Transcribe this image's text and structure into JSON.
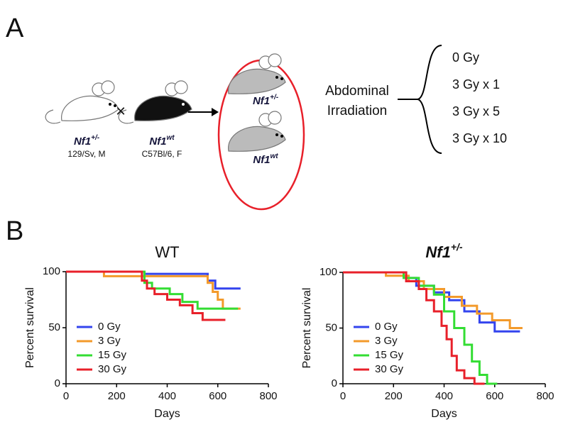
{
  "panel_a": {
    "label": "A",
    "cross": "×",
    "parents": [
      {
        "gene": "Nf1",
        "genotype": "+/-",
        "strain": "129/Sv, M"
      },
      {
        "gene": "Nf1",
        "genotype": "wt",
        "strain": "C57Bl/6, F"
      }
    ],
    "offspring": [
      {
        "gene": "Nf1",
        "genotype": "+/-"
      },
      {
        "gene": "Nf1",
        "genotype": "wt"
      }
    ],
    "treatment": [
      "Abdominal",
      "Irradiation"
    ],
    "doses": [
      "0 Gy",
      "3 Gy x 1",
      "3 Gy x 5",
      "3 Gy x 10"
    ]
  },
  "panel_b": {
    "label": "B"
  },
  "chart_data": [
    {
      "type": "line",
      "step": true,
      "title": "WT",
      "xlabel": "Days",
      "ylabel": "Percent survival",
      "xlim": [
        0,
        800
      ],
      "ylim": [
        0,
        100
      ],
      "xticks": [
        0,
        200,
        400,
        600,
        800
      ],
      "yticks": [
        0,
        50,
        100
      ],
      "legend": "lower left",
      "series": [
        {
          "name": "0 Gy",
          "color": "#3344ee",
          "x": [
            0,
            310,
            310,
            560,
            560,
            590,
            590,
            690
          ],
          "values": [
            100,
            100,
            98,
            98,
            92,
            92,
            85,
            85
          ]
        },
        {
          "name": "3 Gy",
          "color": "#f39a2b",
          "x": [
            0,
            150,
            150,
            560,
            560,
            580,
            580,
            600,
            600,
            620,
            620,
            690
          ],
          "values": [
            100,
            100,
            96,
            96,
            90,
            90,
            82,
            82,
            75,
            75,
            67,
            67
          ]
        },
        {
          "name": "15 Gy",
          "color": "#33dd33",
          "x": [
            0,
            310,
            310,
            340,
            340,
            410,
            410,
            460,
            460,
            520,
            520,
            680
          ],
          "values": [
            100,
            100,
            90,
            90,
            85,
            85,
            80,
            80,
            73,
            73,
            67,
            67
          ]
        },
        {
          "name": "30 Gy",
          "color": "#e8202a",
          "x": [
            0,
            300,
            300,
            320,
            320,
            350,
            350,
            400,
            400,
            450,
            450,
            500,
            500,
            540,
            540,
            630
          ],
          "values": [
            100,
            100,
            92,
            92,
            85,
            85,
            80,
            80,
            75,
            75,
            70,
            70,
            63,
            63,
            57,
            57
          ]
        }
      ]
    },
    {
      "type": "line",
      "step": true,
      "title": "Nf1",
      "title_superscript": "+/-",
      "xlabel": "Days",
      "ylabel": "Percent survival",
      "xlim": [
        0,
        800
      ],
      "ylim": [
        0,
        100
      ],
      "xticks": [
        0,
        200,
        400,
        600,
        800
      ],
      "yticks": [
        0,
        50,
        100
      ],
      "legend": "lower left",
      "series": [
        {
          "name": "0 Gy",
          "color": "#3344ee",
          "x": [
            0,
            250,
            250,
            290,
            290,
            360,
            360,
            420,
            420,
            480,
            480,
            540,
            540,
            600,
            600,
            700
          ],
          "values": [
            100,
            100,
            95,
            95,
            88,
            88,
            82,
            82,
            75,
            75,
            65,
            65,
            55,
            55,
            47,
            47
          ]
        },
        {
          "name": "3 Gy",
          "color": "#f39a2b",
          "x": [
            0,
            170,
            170,
            260,
            260,
            320,
            320,
            400,
            400,
            470,
            470,
            530,
            530,
            590,
            590,
            660,
            660,
            710
          ],
          "values": [
            100,
            100,
            97,
            97,
            92,
            92,
            85,
            85,
            78,
            78,
            70,
            70,
            63,
            63,
            57,
            57,
            50,
            50
          ]
        },
        {
          "name": "15 Gy",
          "color": "#33dd33",
          "x": [
            0,
            240,
            240,
            300,
            300,
            360,
            360,
            400,
            400,
            440,
            440,
            480,
            480,
            510,
            510,
            540,
            540,
            570,
            570,
            610
          ],
          "values": [
            100,
            100,
            95,
            95,
            88,
            88,
            80,
            80,
            65,
            65,
            50,
            50,
            35,
            35,
            20,
            20,
            8,
            8,
            0,
            0
          ]
        },
        {
          "name": "30 Gy",
          "color": "#e8202a",
          "x": [
            0,
            250,
            250,
            300,
            300,
            330,
            330,
            360,
            360,
            390,
            390,
            410,
            410,
            430,
            430,
            450,
            450,
            480,
            480,
            520,
            520,
            560
          ],
          "values": [
            100,
            100,
            92,
            92,
            85,
            85,
            75,
            75,
            65,
            65,
            52,
            52,
            40,
            40,
            25,
            25,
            12,
            12,
            5,
            5,
            0,
            0
          ]
        }
      ]
    }
  ]
}
